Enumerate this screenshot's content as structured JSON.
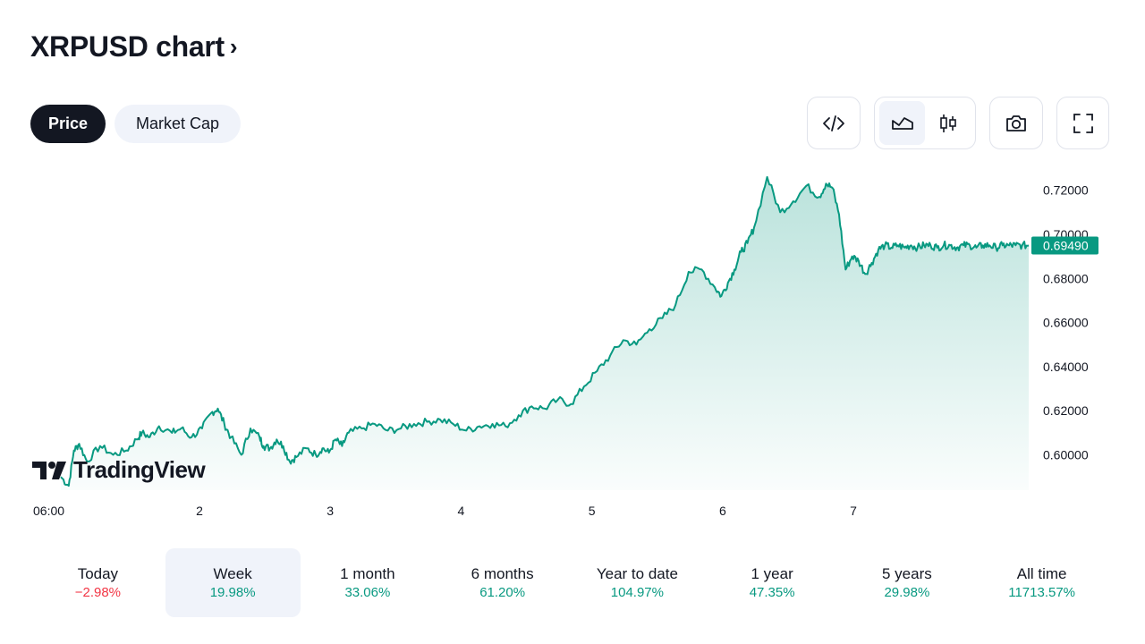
{
  "header": {
    "title": "XRPUSD chart",
    "chevron": "›"
  },
  "tabs": [
    {
      "label": "Price",
      "active": true
    },
    {
      "label": "Market Cap",
      "active": false
    }
  ],
  "toolbar": {
    "embed_icon": "code-icon",
    "area_icon": "area-chart-icon",
    "candle_icon": "candlestick-icon",
    "snapshot_icon": "camera-icon",
    "fullscreen_icon": "fullscreen-icon"
  },
  "brand": {
    "logo_text": "TradingView"
  },
  "colors": {
    "accent": "#089981",
    "negative": "#f23645",
    "text": "#131722"
  },
  "chart_data": {
    "type": "area",
    "x_ticks": [
      "06:00",
      "2",
      "3",
      "4",
      "5",
      "6",
      "7"
    ],
    "y_ticks": [
      "0.72000",
      "0.70000",
      "0.68000",
      "0.66000",
      "0.64000",
      "0.62000",
      "0.60000"
    ],
    "ylim": [
      0.584,
      0.73
    ],
    "last_price": "0.69490",
    "grid": false,
    "series": [
      {
        "x": [
          0.0,
          0.06,
          0.1,
          0.14,
          0.2,
          0.3,
          0.4,
          0.5,
          0.58,
          0.62,
          0.68,
          0.75,
          0.85,
          0.92,
          1.0,
          1.08,
          1.15,
          1.2,
          1.25,
          1.3,
          1.38,
          1.45,
          1.52,
          1.55,
          1.6,
          1.65,
          1.7,
          1.75,
          1.8,
          1.88,
          1.95,
          2.0,
          2.05,
          2.1,
          2.15,
          2.2,
          2.3,
          2.4,
          2.5,
          2.6,
          2.7,
          2.8,
          2.9,
          3.0,
          3.1,
          3.2,
          3.3,
          3.4,
          3.5,
          3.6,
          3.7,
          3.8,
          3.9,
          4.0,
          4.1,
          4.2,
          4.3,
          4.4,
          4.5,
          4.6,
          4.7,
          4.8,
          4.9,
          5.0,
          5.05,
          5.1,
          5.15,
          5.2,
          5.25,
          5.3,
          5.4,
          5.5,
          5.6,
          5.7,
          5.8,
          5.85,
          5.9,
          5.95,
          6.0,
          6.05,
          6.1,
          6.15,
          6.2,
          6.25,
          6.3,
          6.35,
          6.4,
          6.45,
          6.5,
          6.55,
          6.6,
          6.65,
          6.7,
          6.75,
          6.8,
          6.85,
          6.9,
          6.95,
          7.0,
          7.05,
          7.1,
          7.15,
          7.2,
          7.25,
          7.3,
          7.35,
          7.4
        ],
        "values": [
          0.59,
          0.586,
          0.602,
          0.605,
          0.597,
          0.604,
          0.6,
          0.602,
          0.607,
          0.61,
          0.608,
          0.613,
          0.61,
          0.612,
          0.608,
          0.612,
          0.619,
          0.621,
          0.614,
          0.608,
          0.6,
          0.612,
          0.608,
          0.604,
          0.603,
          0.607,
          0.604,
          0.597,
          0.599,
          0.603,
          0.6,
          0.603,
          0.601,
          0.607,
          0.604,
          0.61,
          0.612,
          0.614,
          0.611,
          0.612,
          0.614,
          0.615,
          0.616,
          0.614,
          0.611,
          0.613,
          0.614,
          0.613,
          0.618,
          0.622,
          0.621,
          0.625,
          0.623,
          0.631,
          0.638,
          0.645,
          0.652,
          0.65,
          0.657,
          0.662,
          0.668,
          0.683,
          0.684,
          0.676,
          0.672,
          0.678,
          0.684,
          0.692,
          0.696,
          0.703,
          0.726,
          0.71,
          0.715,
          0.722,
          0.717,
          0.723,
          0.721,
          0.709,
          0.684,
          0.69,
          0.688,
          0.682,
          0.687,
          0.693,
          0.695,
          0.694,
          0.695,
          0.694,
          0.695,
          0.694,
          0.695,
          0.695,
          0.694,
          0.695,
          0.695,
          0.694,
          0.695,
          0.695,
          0.694,
          0.695,
          0.695,
          0.694,
          0.695,
          0.695,
          0.695,
          0.695,
          0.695
        ]
      }
    ]
  },
  "periods": [
    {
      "label": "Today",
      "value": "−2.98%",
      "sign": "neg",
      "selected": false
    },
    {
      "label": "Week",
      "value": "19.98%",
      "sign": "pos",
      "selected": true
    },
    {
      "label": "1 month",
      "value": "33.06%",
      "sign": "pos",
      "selected": false
    },
    {
      "label": "6 months",
      "value": "61.20%",
      "sign": "pos",
      "selected": false
    },
    {
      "label": "Year to date",
      "value": "104.97%",
      "sign": "pos",
      "selected": false
    },
    {
      "label": "1 year",
      "value": "47.35%",
      "sign": "pos",
      "selected": false
    },
    {
      "label": "5 years",
      "value": "29.98%",
      "sign": "pos",
      "selected": false
    },
    {
      "label": "All time",
      "value": "11713.57%",
      "sign": "pos",
      "selected": false
    }
  ]
}
